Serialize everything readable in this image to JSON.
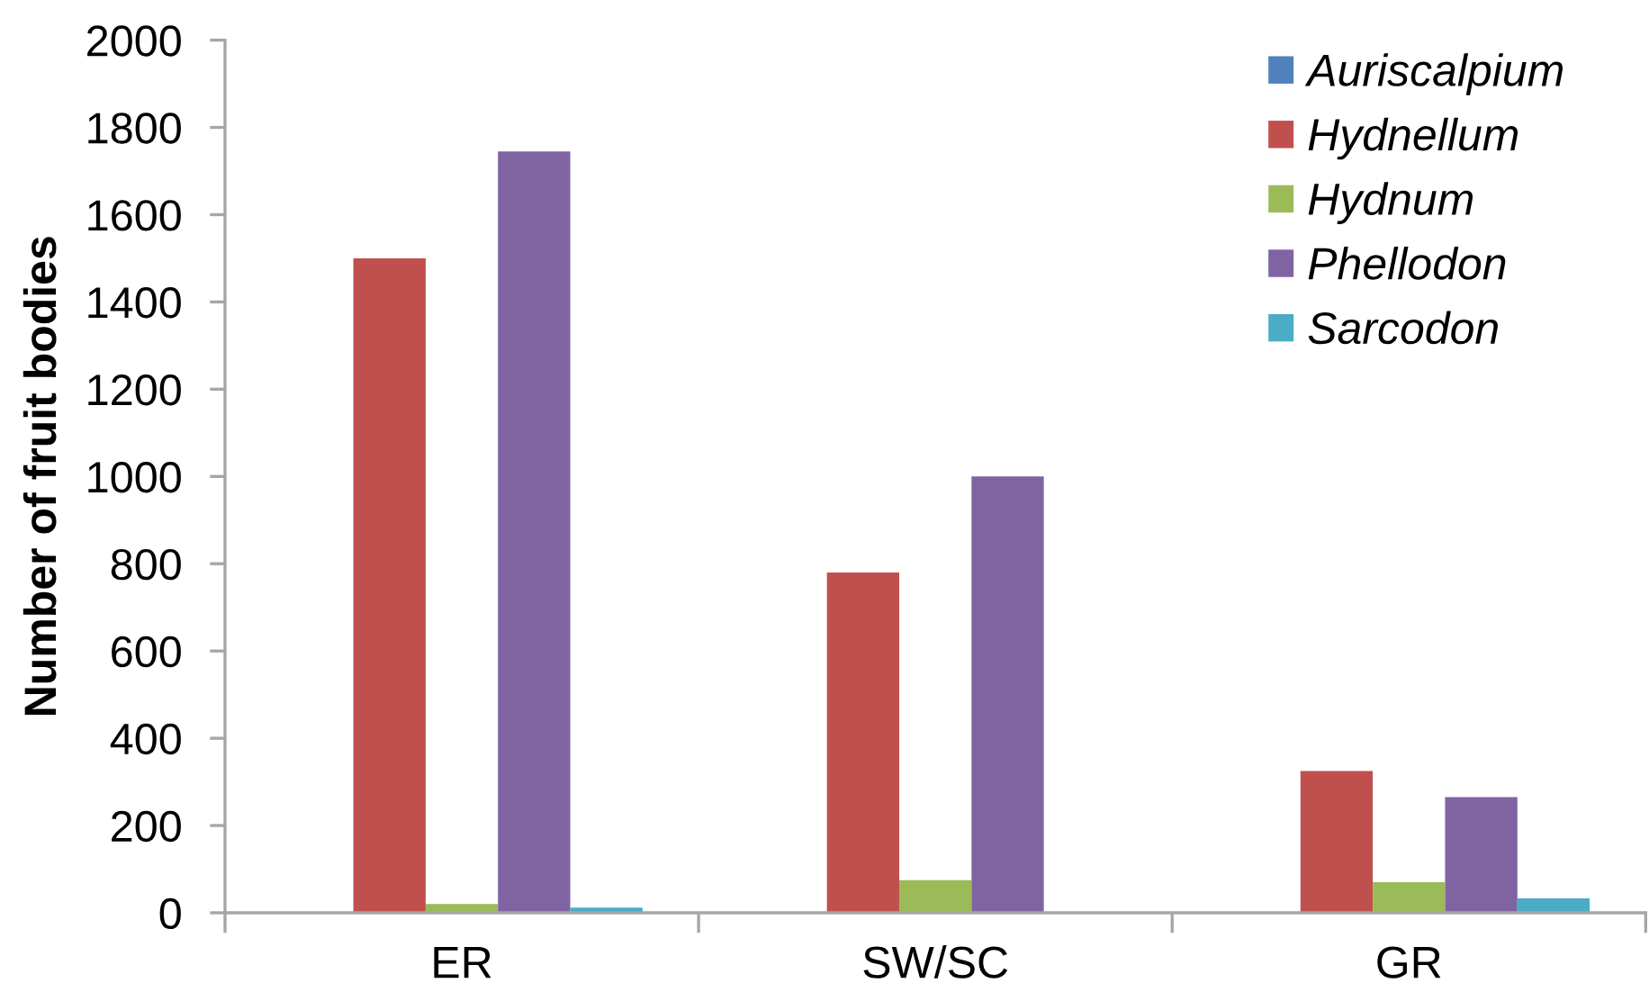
{
  "chart_data": {
    "type": "bar",
    "ylabel": "Number of fruit bodies",
    "categories": [
      "ER",
      "SW/SC",
      "GR"
    ],
    "series": [
      {
        "name": "Auriscalpium",
        "color": "#4f81bd",
        "values": [
          0,
          0,
          0
        ]
      },
      {
        "name": "Hydnellum",
        "color": "#c0504d",
        "values": [
          1500,
          780,
          325
        ]
      },
      {
        "name": "Hydnum",
        "color": "#9bbb59",
        "values": [
          20,
          75,
          70
        ]
      },
      {
        "name": "Phellodon",
        "color": "#8064a2",
        "values": [
          1745,
          1000,
          265
        ]
      },
      {
        "name": "Sarcodon",
        "color": "#4bacc6",
        "values": [
          12,
          0,
          33
        ]
      }
    ],
    "ylim": [
      0,
      2000
    ],
    "yticks": [
      0,
      200,
      400,
      600,
      800,
      1000,
      1200,
      1400,
      1600,
      1800,
      2000
    ],
    "legend": "top right",
    "grid": false
  }
}
